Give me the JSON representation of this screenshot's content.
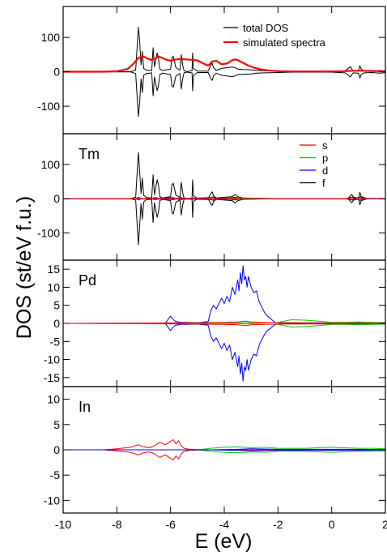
{
  "chart_data": {
    "type": "line",
    "xlabel": "E (eV)",
    "ylabel": "DOS (st/eV f.u.)",
    "xlim": [
      -10,
      2
    ],
    "xticks": [
      -10,
      -8,
      -6,
      -4,
      -2,
      0,
      2
    ],
    "shared_x_axis": true,
    "panels": [
      {
        "id": "total",
        "label": "",
        "ylim": [
          -180,
          190
        ],
        "yticks": [
          -100,
          0,
          100
        ],
        "legend": {
          "placement": "top-right",
          "entries": [
            "total DOS",
            "simulated spectra"
          ]
        },
        "series": [
          {
            "name": "total DOS",
            "color": "#000000",
            "mirrored": true,
            "x": [
              -10,
              -7.5,
              -7.3,
              -7.2,
              -7.15,
              -7.1,
              -7.05,
              -7.0,
              -6.9,
              -6.7,
              -6.65,
              -6.6,
              -6.5,
              -6.45,
              -6.4,
              -6.3,
              -6.0,
              -5.95,
              -5.9,
              -5.8,
              -5.65,
              -5.6,
              -5.55,
              -5.5,
              -5.4,
              -5.2,
              -5.18,
              -5.15,
              -5.0,
              -4.6,
              -4.5,
              -4.45,
              -4.4,
              -4.3,
              -4.1,
              -3.9,
              -3.7,
              -3.6,
              -3.55,
              -3.5,
              -3.3,
              -3.0,
              -2.8,
              -2.5,
              -2.0,
              -1.5,
              -1.0,
              -0.5,
              0.0,
              0.5,
              0.7,
              0.75,
              0.8,
              1.0,
              1.05,
              1.1,
              1.2,
              1.5,
              1.8,
              2.0
            ],
            "y": [
              0,
              0,
              5,
              130,
              90,
              20,
              60,
              10,
              5,
              3,
              70,
              15,
              55,
              40,
              8,
              4,
              8,
              40,
              45,
              12,
              5,
              50,
              20,
              3,
              1,
              3,
              55,
              10,
              2,
              2,
              20,
              25,
              12,
              4,
              10,
              12,
              14,
              12,
              10,
              8,
              7,
              6,
              4,
              3,
              2,
              1,
              1,
              1,
              1,
              3,
              15,
              8,
              3,
              4,
              18,
              8,
              3,
              2,
              4,
              2
            ]
          },
          {
            "name": "simulated spectra",
            "color": "#ff0000",
            "x": [
              -10,
              -8.5,
              -8,
              -7.6,
              -7.4,
              -7.2,
              -7.05,
              -6.9,
              -6.75,
              -6.6,
              -6.45,
              -6.3,
              -6.15,
              -6.0,
              -5.8,
              -5.6,
              -5.4,
              -5.2,
              -5.0,
              -4.8,
              -4.6,
              -4.45,
              -4.3,
              -4.1,
              -3.9,
              -3.7,
              -3.6,
              -3.5,
              -3.3,
              -3.1,
              -2.9,
              -2.7,
              -2.5,
              -2.2,
              -2.0,
              -1.5,
              -1.0,
              -0.5,
              0.0,
              0.5,
              0.8,
              1.0,
              1.1,
              1.5,
              2.0
            ],
            "y": [
              0.2,
              0.3,
              2,
              8,
              22,
              40,
              46,
              40,
              35,
              38,
              45,
              40,
              35,
              32,
              36,
              37,
              36,
              35,
              33,
              25,
              18,
              30,
              32,
              22,
              24,
              34,
              36,
              34,
              26,
              18,
              12,
              8,
              5,
              3,
              2,
              1.5,
              1,
              1.2,
              1.5,
              2,
              3,
              3,
              3,
              2.5,
              2
            ]
          }
        ]
      },
      {
        "id": "Tm",
        "label": "Tm",
        "ylim": [
          -180,
          190
        ],
        "yticks": [
          -100,
          0,
          100
        ],
        "legend": {
          "placement": "top-right",
          "entries": [
            "s",
            "p",
            "d",
            "f"
          ]
        },
        "series": [
          {
            "name": "f",
            "color": "#000000",
            "mirrored": true,
            "x": [
              -10,
              -7.5,
              -7.3,
              -7.2,
              -7.15,
              -7.1,
              -7.05,
              -7.0,
              -6.9,
              -6.7,
              -6.65,
              -6.6,
              -6.5,
              -6.45,
              -6.4,
              -6.3,
              -6.0,
              -5.95,
              -5.9,
              -5.8,
              -5.65,
              -5.6,
              -5.55,
              -5.5,
              -5.4,
              -5.2,
              -5.18,
              -5.15,
              -5.0,
              -4.6,
              -4.5,
              -4.45,
              -4.4,
              -4.3,
              -3.7,
              -3.6,
              -3.55,
              -3.5,
              -3.3,
              -2.0,
              0.6,
              0.75,
              0.8,
              1.0,
              1.05,
              1.1,
              1.3,
              2.0
            ],
            "y": [
              0,
              0,
              4,
              135,
              80,
              15,
              60,
              10,
              3,
              2,
              70,
              12,
              55,
              40,
              6,
              2,
              6,
              40,
              45,
              10,
              4,
              48,
              18,
              2,
              1,
              2,
              55,
              8,
              1,
              1,
              15,
              20,
              8,
              2,
              6,
              12,
              10,
              6,
              2,
              0,
              0,
              12,
              5,
              1,
              18,
              6,
              1,
              0
            ]
          },
          {
            "name": "d",
            "color": "#0000ff",
            "mirrored": true,
            "x": [
              -10,
              -7.3,
              -7.2,
              -7.1,
              -6.7,
              -6.6,
              -6.4,
              -5.9,
              -5.8,
              -5.6,
              -5.5,
              -4.5,
              -4.4,
              -4.3,
              -3.8,
              -3.6,
              -3.4,
              -2.0,
              0.5,
              0.75,
              0.9,
              1.05,
              1.2,
              2.0
            ],
            "y": [
              0,
              0,
              4,
              1,
              0,
              3,
              1,
              3,
              1,
              3,
              1,
              3,
              5,
              1,
              2,
              4,
              1,
              0,
              0,
              4,
              1,
              5,
              1,
              0
            ]
          },
          {
            "name": "p",
            "color": "#00cc00",
            "mirrored": true,
            "x": [
              -10,
              -4.5,
              -4.4,
              -4.3,
              -3.6,
              -2.0,
              0.8,
              1.05,
              1.2,
              2.0
            ],
            "y": [
              0,
              0,
              1.5,
              0,
              1.5,
              0,
              0,
              1.5,
              0,
              0
            ]
          },
          {
            "name": "s",
            "color": "#ff0000",
            "mirrored": true,
            "x": [
              -10,
              -6.0,
              -5.5,
              -4.5,
              -2.0,
              2.0
            ],
            "y": [
              0,
              0.5,
              0.5,
              0.5,
              0,
              0
            ]
          }
        ]
      },
      {
        "id": "Pd",
        "label": "Pd",
        "ylim": [
          -17.5,
          17.5
        ],
        "yticks": [
          -15,
          -10,
          -5,
          0,
          5,
          10,
          15
        ],
        "series": [
          {
            "name": "d",
            "color": "#0000ff",
            "mirrored": true,
            "x": [
              -10,
              -6.2,
              -6.0,
              -5.9,
              -5.8,
              -5.6,
              -5.4,
              -5.0,
              -4.6,
              -4.5,
              -4.4,
              -4.3,
              -4.2,
              -4.1,
              -4.0,
              -3.9,
              -3.8,
              -3.7,
              -3.6,
              -3.5,
              -3.45,
              -3.4,
              -3.35,
              -3.3,
              -3.25,
              -3.2,
              -3.15,
              -3.1,
              -3.0,
              -2.9,
              -2.8,
              -2.7,
              -2.6,
              -2.5,
              -2.4,
              -2.3,
              -2.2,
              -2.1,
              -2.0,
              -1.8,
              -1.5,
              -1.0,
              -0.5,
              0.0,
              0.5,
              1.0,
              1.5,
              2.0
            ],
            "y": [
              0,
              0,
              2,
              1,
              0.5,
              0.3,
              0.3,
              0.2,
              0.5,
              3.5,
              5,
              4,
              5.5,
              7,
              5.5,
              7.5,
              6,
              10,
              8,
              12,
              9,
              14,
              11,
              16,
              12,
              13,
              10,
              13,
              10,
              8.5,
              9,
              6,
              4.5,
              3,
              2,
              1.5,
              0.8,
              0.3,
              0.2,
              0.1,
              0.1,
              0.1,
              0.1,
              0.1,
              0.2,
              0.2,
              0.1,
              0.05
            ]
          },
          {
            "name": "p",
            "color": "#00cc00",
            "mirrored": true,
            "x": [
              -10,
              -4.5,
              -3.5,
              -2.5,
              -2.0,
              -1.7,
              -1.5,
              -1.0,
              -0.5,
              0.0,
              0.5,
              1.0,
              1.5,
              2.0
            ],
            "y": [
              0,
              0,
              0.1,
              0.2,
              0.3,
              0.7,
              1.0,
              0.9,
              0.6,
              0.3,
              0.3,
              0.4,
              0.3,
              0.2
            ]
          },
          {
            "name": "s",
            "color": "#ff0000",
            "mirrored": true,
            "x": [
              -10,
              -7.0,
              -5.0,
              -4.0,
              -3.5,
              -3.2,
              -3.0,
              -2.5,
              -2.0,
              2.0
            ],
            "y": [
              0,
              0.1,
              0.2,
              0.3,
              0.4,
              0.6,
              0.4,
              0.3,
              0.2,
              0.1
            ]
          }
        ]
      },
      {
        "id": "In",
        "label": "In",
        "ylim": [
          -12.5,
          12.5
        ],
        "yticks": [
          -10,
          -5,
          0,
          5,
          10
        ],
        "series": [
          {
            "name": "s",
            "color": "#ff0000",
            "mirrored": true,
            "x": [
              -10,
              -8.5,
              -8.0,
              -7.5,
              -7.2,
              -7.0,
              -6.8,
              -6.6,
              -6.4,
              -6.2,
              -6.0,
              -5.9,
              -5.8,
              -5.7,
              -5.6,
              -5.5,
              -5.3,
              -5.0,
              -4.5,
              -2.0,
              2.0
            ],
            "y": [
              0,
              0,
              0.2,
              0.5,
              1.0,
              0.6,
              0.4,
              0.8,
              1.5,
              1.0,
              1.7,
              2.0,
              1.2,
              1.8,
              0.8,
              0.3,
              0.1,
              0.05,
              0,
              0,
              0
            ]
          },
          {
            "name": "p",
            "color": "#00cc00",
            "mirrored": true,
            "x": [
              -10,
              -5.0,
              -4.5,
              -4.0,
              -3.5,
              -3.0,
              -2.5,
              -2.0,
              -1.5,
              -1.0,
              -0.5,
              0.0,
              0.5,
              1.0,
              1.5,
              2.0
            ],
            "y": [
              0,
              0,
              0.3,
              0.5,
              0.6,
              0.4,
              0.5,
              0.3,
              0.3,
              0.3,
              0.4,
              0.5,
              0.4,
              0.3,
              0.3,
              0.2
            ]
          },
          {
            "name": "d",
            "color": "#0000ff",
            "mirrored": true,
            "x": [
              -10,
              -4.5,
              -3.5,
              -3.0,
              -2.0,
              -1.0,
              0.0,
              1.0,
              2.0
            ],
            "y": [
              0,
              0,
              0.1,
              0.2,
              0.1,
              0.1,
              0.1,
              0.1,
              0.05
            ]
          }
        ]
      }
    ]
  }
}
